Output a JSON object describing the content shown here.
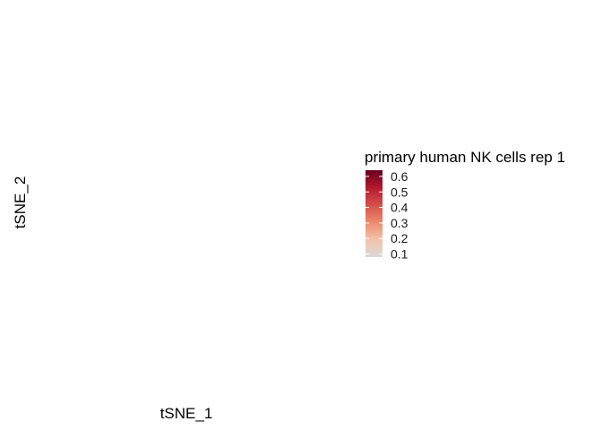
{
  "chart_data": {
    "type": "scatter",
    "xlabel": "tSNE_1",
    "ylabel": "tSNE_2",
    "points": [],
    "color_scale": {
      "title": "primary human NK cells rep 1",
      "limits": [
        0.08,
        0.64
      ],
      "breaks": [
        0.1,
        0.2,
        0.3,
        0.4,
        0.5,
        0.6
      ],
      "break_labels": [
        "0.1",
        "0.2",
        "0.3",
        "0.4",
        "0.5",
        "0.6"
      ],
      "colors": [
        "#d9d9d9",
        "#f4c3ab",
        "#ec8a6d",
        "#d6504b",
        "#b3192f",
        "#67001f"
      ]
    },
    "grid": false,
    "legend_position": "right"
  }
}
